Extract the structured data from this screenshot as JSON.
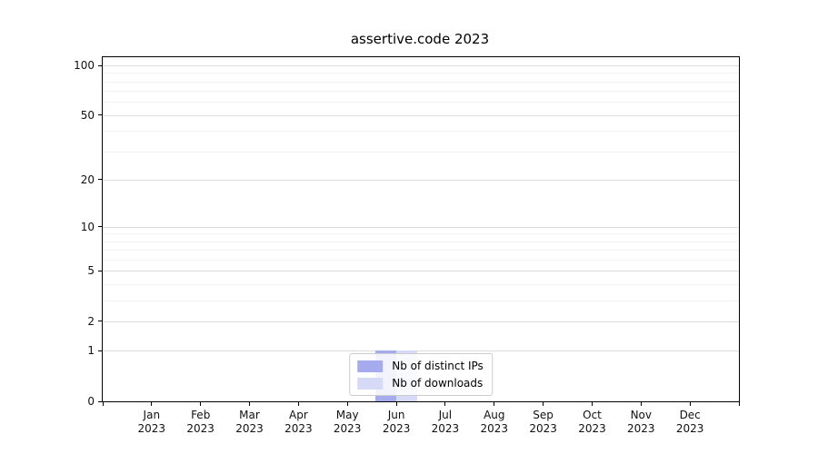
{
  "title": "assertive.code 2023",
  "colors": {
    "distinct_ips": "#a6abed",
    "downloads": "#d7daf6",
    "grid_major": "#dcdcdc",
    "grid_minor": "#f2f2f5",
    "axis": "#000000",
    "legend_border": "#cccccc",
    "background": "#ffffff"
  },
  "legend": {
    "items": [
      {
        "label": "Nb of distinct IPs",
        "color_key": "distinct_ips"
      },
      {
        "label": "Nb of downloads",
        "color_key": "downloads"
      }
    ]
  },
  "chart_data": {
    "type": "bar",
    "title": "assertive.code 2023",
    "x_tick_months": [
      "Jan",
      "Feb",
      "Mar",
      "Apr",
      "May",
      "Jun",
      "Jul",
      "Aug",
      "Sep",
      "Oct",
      "Nov",
      "Dec"
    ],
    "x_tick_year": "2023",
    "y_scale": "log1p",
    "ylim": [
      0,
      112
    ],
    "y_ticks": [
      0,
      1,
      2,
      5,
      10,
      20,
      50,
      100
    ],
    "y_minor_ticks": [
      3,
      4,
      6,
      7,
      8,
      9,
      30,
      40,
      60,
      70,
      80,
      90
    ],
    "grid": true,
    "legend_position": "lower center",
    "xlabel": "",
    "ylabel": "",
    "series": [
      {
        "name": "Nb of distinct IPs",
        "color_key": "distinct_ips",
        "values": [
          0,
          0,
          0,
          0,
          0,
          1,
          0,
          0,
          0,
          0,
          0,
          0
        ]
      },
      {
        "name": "Nb of downloads",
        "color_key": "downloads",
        "values": [
          0,
          0,
          0,
          0,
          0,
          1,
          0,
          0,
          0,
          0,
          0,
          0
        ]
      }
    ]
  }
}
